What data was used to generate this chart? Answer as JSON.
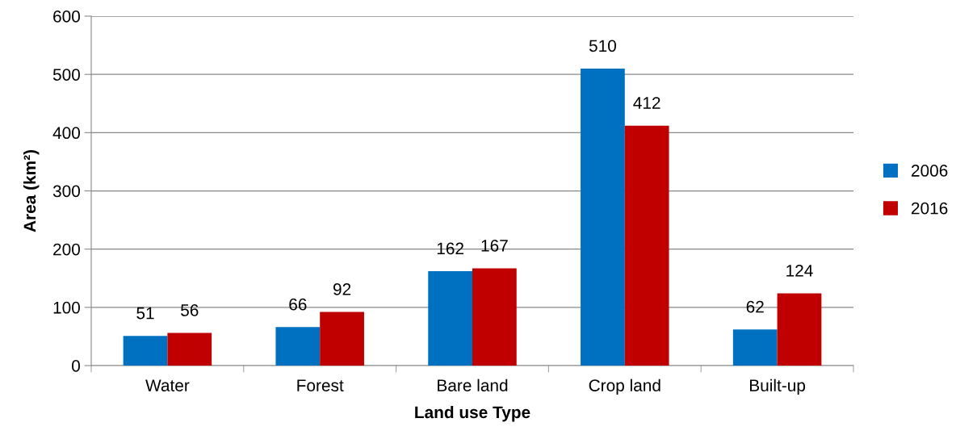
{
  "chart_data": {
    "type": "bar",
    "xlabel": "Land use Type",
    "ylabel": "Area (km²)",
    "categories": [
      "Water",
      "Forest",
      "Bare land",
      "Crop land",
      "Built-up"
    ],
    "series": [
      {
        "name": "2006",
        "color": "#0070c0",
        "values": [
          51,
          66,
          162,
          510,
          62
        ]
      },
      {
        "name": "2016",
        "color": "#c00000",
        "values": [
          56,
          92,
          167,
          412,
          124
        ]
      }
    ],
    "ylim": [
      0,
      600
    ],
    "yticks": [
      0,
      100,
      200,
      300,
      400,
      500,
      600
    ],
    "grid": "y",
    "legend": "right",
    "data_labels": true
  }
}
